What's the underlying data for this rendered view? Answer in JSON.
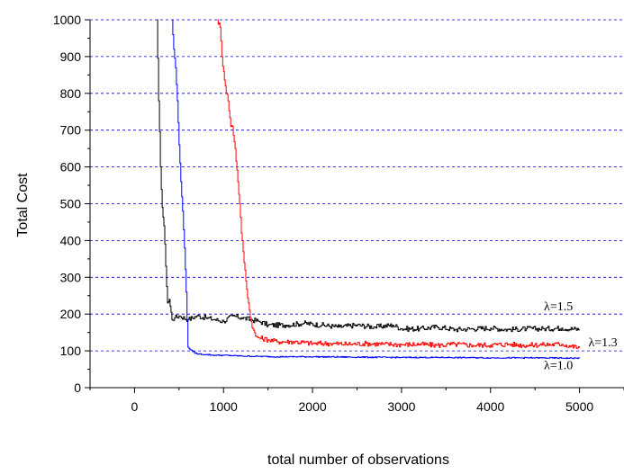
{
  "chart_data": {
    "type": "line",
    "title": "",
    "xlabel": "total number of observations",
    "ylabel": "Total Cost",
    "xlim": [
      -500,
      5500
    ],
    "ylim": [
      0,
      1000
    ],
    "xticks": [
      0,
      1000,
      2000,
      3000,
      4000,
      5000
    ],
    "yticks": [
      0,
      100,
      200,
      300,
      400,
      500,
      600,
      700,
      800,
      900,
      1000
    ],
    "grid": "horizontal dashed at y ticks",
    "series": [
      {
        "name": "λ=1.5",
        "color": "#000000",
        "x": [
          250,
          270,
          290,
          310,
          330,
          350,
          370,
          390,
          420,
          450,
          500,
          600,
          700,
          800,
          900,
          1000,
          1100,
          1200,
          1300,
          1400,
          1500,
          1700,
          1900,
          2100,
          2300,
          2500,
          2700,
          2900,
          3000,
          3200,
          3400,
          3600,
          3800,
          4000,
          4200,
          4400,
          4600,
          4800,
          5000
        ],
        "values": [
          1000,
          780,
          600,
          490,
          440,
          330,
          230,
          240,
          185,
          190,
          195,
          185,
          195,
          190,
          185,
          180,
          195,
          190,
          185,
          180,
          170,
          170,
          175,
          170,
          165,
          170,
          165,
          170,
          160,
          160,
          165,
          158,
          160,
          162,
          158,
          160,
          160,
          162,
          158
        ],
        "label_text": "λ=1.5",
        "label_at": [
          4600,
          210
        ]
      },
      {
        "name": "λ=1.3",
        "color": "#ff0000",
        "x": [
          930,
          960,
          980,
          1000,
          1020,
          1050,
          1080,
          1100,
          1130,
          1160,
          1180,
          1200,
          1220,
          1250,
          1280,
          1300,
          1330,
          1360,
          1400,
          1500,
          1600,
          1800,
          2000,
          2200,
          2400,
          2600,
          2800,
          3000,
          3200,
          3400,
          3600,
          3800,
          4000,
          4200,
          4400,
          4600,
          4800,
          5000
        ],
        "values": [
          1000,
          980,
          900,
          860,
          820,
          780,
          710,
          710,
          650,
          560,
          500,
          420,
          370,
          290,
          230,
          190,
          160,
          140,
          135,
          130,
          125,
          125,
          120,
          120,
          118,
          120,
          118,
          117,
          118,
          115,
          118,
          115,
          116,
          118,
          115,
          117,
          118,
          108
        ],
        "label_text": "λ=1.3",
        "label_at": [
          5100,
          112
        ]
      },
      {
        "name": "λ=1.0",
        "color": "#0000ff",
        "x": [
          420,
          440,
          460,
          480,
          500,
          520,
          540,
          560,
          580,
          600,
          650,
          700,
          800,
          900,
          1000,
          1200,
          1400,
          1600,
          2000,
          2500,
          3000,
          3500,
          4000,
          4500,
          5000
        ],
        "values": [
          1000,
          920,
          870,
          780,
          660,
          560,
          480,
          380,
          260,
          110,
          98,
          92,
          90,
          88,
          88,
          86,
          85,
          84,
          84,
          83,
          82,
          82,
          81,
          81,
          80
        ],
        "label_text": "λ=1.0",
        "label_at": [
          4600,
          50
        ]
      }
    ]
  }
}
